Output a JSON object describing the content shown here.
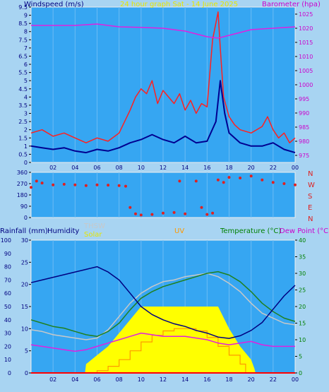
{
  "header": {
    "title": "24 hour graph Sat - 14 June 2025",
    "left_label": "Windspeed (m/s)",
    "right_label": "Barometer (hpa)"
  },
  "compass": [
    "N",
    "W",
    "S",
    "E",
    "N"
  ],
  "bottom_labels": {
    "rainfall": "Rainfall (mm)",
    "humidity": "Humidity",
    "thsw": "THSW",
    "solar": "Solar",
    "uv": "UV",
    "temperature": "Temperature (°C)",
    "dewpoint": "Dew Point (°C)"
  },
  "colors": {
    "background": "#a8d4f2",
    "plot_bg": "#36a6f2",
    "frame": "#eeeeee",
    "wind_gust": "#ff2020",
    "wind_avg": "#000090",
    "barometer": "#e020e0",
    "direction": "#e02020",
    "humidity": "#000080",
    "temperature": "#208020",
    "dewpoint": "#e020e0",
    "thsw": "#c8c8c8",
    "solar": "#ffff00",
    "uv": "#ff9900",
    "rain": "#ff0000",
    "title_text": "#e6e600",
    "axis_left_text": "#000080",
    "axis_right_text": "#cc00cc",
    "temp_axis_text": "#008000"
  },
  "chart_data": [
    {
      "type": "line",
      "title": "24 hour graph Sat - 14 June 2025",
      "x_ticks": [
        "02",
        "04",
        "06",
        "08",
        "10",
        "12",
        "14",
        "16",
        "18",
        "20",
        "22",
        "00"
      ],
      "left_axis": {
        "label": "Windspeed (m/s)",
        "range": [
          0,
          9.5
        ],
        "ticks": [
          "0",
          "0.5",
          "1",
          "1.5",
          "2",
          "2.5",
          "3",
          "3.5",
          "4",
          "4.5",
          "5",
          "5.5",
          "6",
          "6.5",
          "7",
          "7.5",
          "8",
          "8.5",
          "9",
          "9.5"
        ]
      },
      "right_axis": {
        "label": "Barometer (hpa)",
        "range": [
          972.5,
          1027.5
        ],
        "ticks": [
          "975",
          "980",
          "985",
          "990",
          "995",
          "1000",
          "1005",
          "1010",
          "1015",
          "1020",
          "1025"
        ]
      },
      "series": [
        {
          "name": "Wind gust",
          "axis": "left",
          "x": [
            0,
            1,
            2,
            3,
            4,
            5,
            6,
            7,
            8,
            9,
            9.5,
            10,
            10.5,
            11,
            11.5,
            12,
            12.5,
            13,
            13.5,
            14,
            14.5,
            15,
            15.5,
            16,
            16.5,
            17,
            17.2,
            17.5,
            18,
            18.5,
            19,
            20,
            21,
            21.5,
            22,
            22.5,
            23,
            23.5,
            24
          ],
          "values": [
            1.8,
            2.0,
            1.6,
            1.8,
            1.5,
            1.2,
            1.5,
            1.3,
            1.8,
            3.2,
            4.0,
            4.5,
            4.2,
            5.0,
            3.6,
            4.4,
            4.0,
            3.6,
            4.2,
            3.2,
            3.8,
            3.0,
            3.6,
            3.4,
            7.5,
            9.2,
            7.0,
            4.0,
            2.8,
            2.3,
            2.0,
            1.8,
            2.2,
            2.8,
            2.0,
            1.5,
            1.8,
            1.2,
            1.5
          ]
        },
        {
          "name": "Wind average",
          "axis": "left",
          "x": [
            0,
            1,
            2,
            3,
            4,
            5,
            6,
            7,
            8,
            9,
            10,
            11,
            12,
            13,
            14,
            15,
            16,
            16.8,
            17.2,
            17.6,
            18,
            19,
            20,
            21,
            22,
            23,
            24
          ],
          "values": [
            1.0,
            0.9,
            0.8,
            0.9,
            0.7,
            0.6,
            0.8,
            0.7,
            0.9,
            1.2,
            1.4,
            1.7,
            1.4,
            1.2,
            1.6,
            1.2,
            1.3,
            2.5,
            5.0,
            3.0,
            1.8,
            1.2,
            1.0,
            1.0,
            1.2,
            0.8,
            0.6
          ]
        },
        {
          "name": "Barometer",
          "axis": "right",
          "x": [
            0,
            2,
            4,
            6,
            8,
            10,
            12,
            14,
            16,
            17,
            18,
            20,
            22,
            24
          ],
          "values": [
            1021,
            1021,
            1021,
            1021.5,
            1020.5,
            1020.3,
            1020,
            1019,
            1017,
            1016.5,
            1017.5,
            1019.5,
            1020,
            1020.5
          ]
        }
      ]
    },
    {
      "type": "scatter",
      "name": "Wind direction",
      "y_ticks": [
        "0",
        "90",
        "180",
        "270",
        "360"
      ],
      "y_range": [
        0,
        360
      ],
      "x": [
        0,
        0.5,
        1,
        2,
        3,
        4,
        5,
        6,
        7,
        8,
        8.6,
        9,
        9.5,
        10,
        11,
        12,
        13,
        13.5,
        14,
        15,
        15.5,
        16,
        16.5,
        17,
        17.5,
        18,
        19,
        20,
        21,
        22,
        23,
        24
      ],
      "values": [
        240,
        290,
        275,
        260,
        265,
        260,
        255,
        260,
        258,
        255,
        250,
        80,
        30,
        20,
        25,
        35,
        40,
        290,
        30,
        290,
        80,
        25,
        35,
        300,
        280,
        320,
        315,
        330,
        300,
        280,
        270,
        260
      ]
    },
    {
      "type": "line",
      "left_axis_rain": {
        "label": "Rainfall (mm)",
        "range": [
          0,
          30
        ],
        "ticks": [
          "0",
          "5",
          "10",
          "15",
          "20",
          "25",
          "30"
        ]
      },
      "left_axis_humidity": {
        "label": "Humidity",
        "range": [
          0,
          100
        ],
        "ticks": [
          "0",
          "10",
          "20",
          "30",
          "40",
          "50",
          "60",
          "70",
          "80",
          "90",
          "100"
        ]
      },
      "right_axis": {
        "label": "Temperature (°C)",
        "range": [
          0,
          40
        ],
        "ticks": [
          "0",
          "5",
          "10",
          "15",
          "20",
          "25",
          "30",
          "35",
          "40"
        ]
      },
      "x_ticks": [
        "02",
        "04",
        "06",
        "08",
        "10",
        "12",
        "14",
        "16",
        "18",
        "20",
        "22",
        "00"
      ],
      "series": [
        {
          "name": "Humidity",
          "axis": "humidity",
          "x": [
            0,
            1,
            2,
            3,
            4,
            5,
            6,
            7,
            8,
            9,
            10,
            11,
            12,
            13,
            14,
            15,
            16,
            17,
            18,
            19,
            20,
            21,
            22,
            23,
            24
          ],
          "values": [
            68,
            70,
            72,
            74,
            76,
            78,
            80,
            76,
            70,
            60,
            50,
            44,
            40,
            37,
            35,
            32,
            30,
            27,
            26,
            28,
            32,
            38,
            48,
            58,
            66
          ]
        },
        {
          "name": "Temperature (°C)",
          "axis": "temperature",
          "x": [
            0,
            1,
            2,
            3,
            4,
            5,
            6,
            7,
            8,
            9,
            10,
            11,
            12,
            13,
            14,
            15,
            16,
            17,
            18,
            19,
            20,
            21,
            22,
            23,
            24
          ],
          "values": [
            16,
            15,
            14,
            13.5,
            12.5,
            11.5,
            11,
            12.5,
            15,
            19,
            22.5,
            24.5,
            26,
            27,
            28,
            29,
            30,
            30.5,
            29.5,
            27.5,
            24.5,
            21,
            18.5,
            16.5,
            15.5
          ]
        },
        {
          "name": "THSW",
          "axis": "temperature",
          "x": [
            0,
            1,
            2,
            3,
            4,
            5,
            6,
            7,
            8,
            9,
            10,
            11,
            12,
            13,
            14,
            15,
            16,
            17,
            18,
            19,
            20,
            21,
            22,
            23,
            24
          ],
          "values": [
            13,
            12.5,
            11.5,
            11,
            10.5,
            10,
            10.5,
            13,
            17,
            21,
            24,
            26,
            27.5,
            28,
            29,
            29.5,
            30,
            29,
            27,
            24.5,
            21,
            18,
            16.5,
            15,
            14.5
          ]
        },
        {
          "name": "Dew Point (°C)",
          "axis": "temperature",
          "x": [
            0,
            1,
            2,
            3,
            4,
            5,
            6,
            7,
            8,
            9,
            10,
            11,
            12,
            13,
            14,
            15,
            16,
            17,
            18,
            19,
            20,
            21,
            22,
            23,
            24
          ],
          "values": [
            8.5,
            8,
            7.5,
            7,
            6.5,
            7,
            8,
            9,
            10,
            11,
            12,
            11.5,
            11,
            11,
            11,
            10.5,
            10,
            9,
            8.5,
            9,
            9.5,
            8.5,
            8,
            8,
            8
          ]
        },
        {
          "name": "Solar",
          "axis": "rain_scale",
          "x": [
            0,
            4.9,
            5,
            6,
            7,
            8,
            9,
            10,
            11,
            12,
            13,
            14,
            15,
            16,
            17,
            18,
            19,
            20,
            20.3,
            20.4,
            24
          ],
          "values": [
            0,
            0,
            2,
            4,
            6,
            9,
            12,
            15,
            15,
            15,
            15,
            15,
            15,
            15,
            15,
            10,
            6,
            3,
            1,
            0,
            0
          ]
        },
        {
          "name": "UV",
          "axis": "rain_scale",
          "x": [
            0,
            5.5,
            6,
            7,
            8,
            9,
            10,
            11,
            12,
            13,
            14,
            15,
            16,
            17,
            18,
            19,
            19.5,
            24
          ],
          "values": [
            0,
            0,
            0.5,
            1.5,
            3,
            5,
            7,
            8.5,
            9.5,
            10,
            10,
            9.5,
            8,
            6,
            4,
            2,
            0,
            0
          ]
        },
        {
          "name": "Rainfall (mm)",
          "axis": "rain_scale",
          "x": [
            0,
            24
          ],
          "values": [
            0,
            0
          ]
        }
      ]
    }
  ]
}
